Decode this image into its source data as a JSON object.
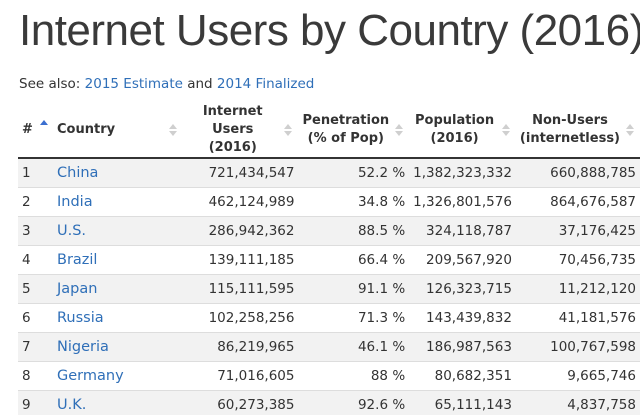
{
  "title": "Internet Users by Country (2016)",
  "see_also": {
    "prefix": "See also: ",
    "link1": "2015 Estimate",
    "conjunction": " and ",
    "link2": "2014 Finalized"
  },
  "table": {
    "headers": {
      "rank": "#",
      "country": "Country",
      "internet_users_1": "Internet Users",
      "internet_users_2": "(2016)",
      "penetration_1": "Penetration",
      "penetration_2": "(% of Pop)",
      "population_1": "Population",
      "population_2": "(2016)",
      "non_users_1": "Non-Users",
      "non_users_2": "(internetless)"
    },
    "rows": [
      {
        "rank": "1",
        "country": "China",
        "users": "721,434,547",
        "penetration": "52.2 %",
        "population": "1,382,323,332",
        "non_users": "660,888,785"
      },
      {
        "rank": "2",
        "country": "India",
        "users": "462,124,989",
        "penetration": "34.8 %",
        "population": "1,326,801,576",
        "non_users": "864,676,587"
      },
      {
        "rank": "3",
        "country": "U.S.",
        "users": "286,942,362",
        "penetration": "88.5 %",
        "population": "324,118,787",
        "non_users": "37,176,425"
      },
      {
        "rank": "4",
        "country": "Brazil",
        "users": "139,111,185",
        "penetration": "66.4 %",
        "population": "209,567,920",
        "non_users": "70,456,735"
      },
      {
        "rank": "5",
        "country": "Japan",
        "users": "115,111,595",
        "penetration": "91.1 %",
        "population": "126,323,715",
        "non_users": "11,212,120"
      },
      {
        "rank": "6",
        "country": "Russia",
        "users": "102,258,256",
        "penetration": "71.3 %",
        "population": "143,439,832",
        "non_users": "41,181,576"
      },
      {
        "rank": "7",
        "country": "Nigeria",
        "users": "86,219,965",
        "penetration": "46.1 %",
        "population": "186,987,563",
        "non_users": "100,767,598"
      },
      {
        "rank": "8",
        "country": "Germany",
        "users": "71,016,605",
        "penetration": "88 %",
        "population": "80,682,351",
        "non_users": "9,665,746"
      },
      {
        "rank": "9",
        "country": "U.K.",
        "users": "60,273,385",
        "penetration": "92.6 %",
        "population": "65,111,143",
        "non_users": "4,837,758"
      }
    ]
  },
  "colors": {
    "link": "#2f6fb8",
    "row_stripe": "#f2f2f2",
    "sort_active": "#3b6fd0",
    "sort_inactive": "#cfcfcf"
  }
}
